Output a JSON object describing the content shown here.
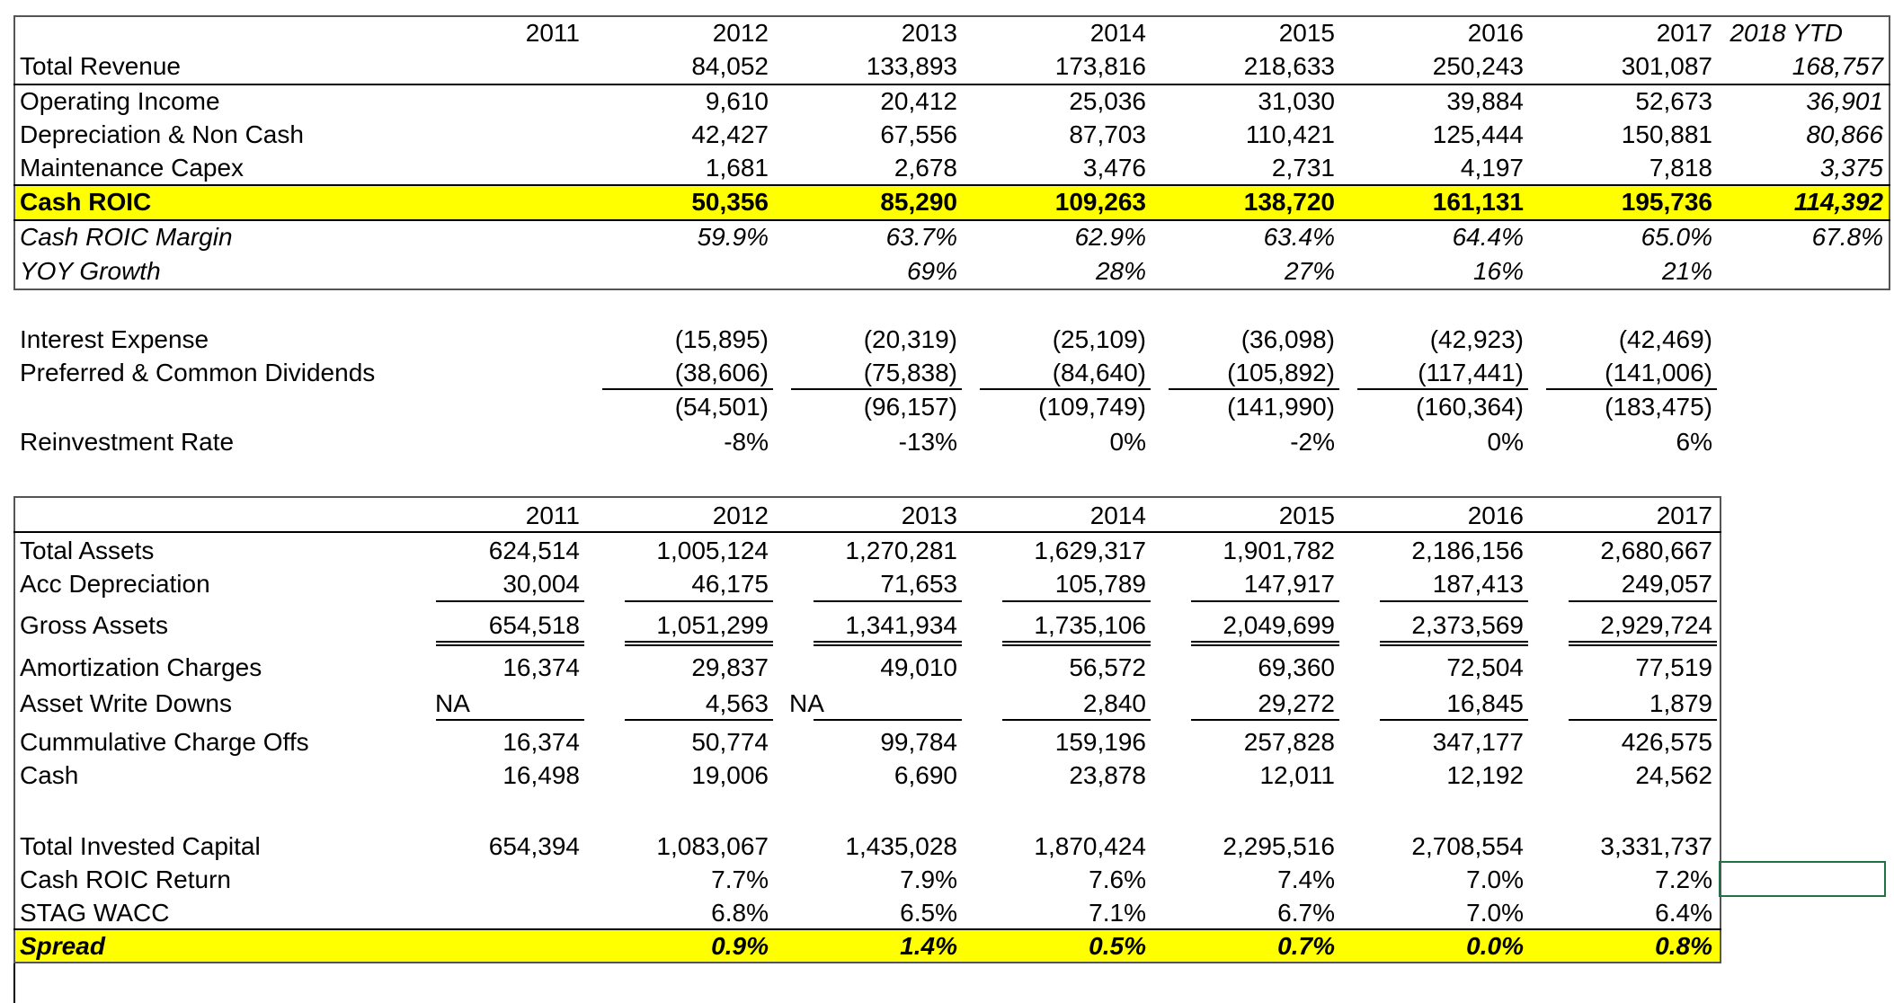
{
  "top": {
    "years": [
      "2011",
      "2012",
      "2013",
      "2014",
      "2015",
      "2016",
      "2017"
    ],
    "ytd_label": "2018 YTD",
    "rows": [
      {
        "label": "Total Revenue",
        "values": [
          "",
          "84,052",
          "133,893",
          "173,816",
          "218,633",
          "250,243",
          "301,087"
        ],
        "ytd": "168,757"
      },
      {
        "label": "Operating Income",
        "values": [
          "",
          "9,610",
          "20,412",
          "25,036",
          "31,030",
          "39,884",
          "52,673"
        ],
        "ytd": "36,901"
      },
      {
        "label": "Depreciation & Non Cash",
        "values": [
          "",
          "42,427",
          "67,556",
          "87,703",
          "110,421",
          "125,444",
          "150,881"
        ],
        "ytd": "80,866"
      },
      {
        "label": "Maintenance Capex",
        "values": [
          "",
          "1,681",
          "2,678",
          "3,476",
          "2,731",
          "4,197",
          "7,818"
        ],
        "ytd": "3,375"
      },
      {
        "label": "Cash ROIC",
        "values": [
          "",
          "50,356",
          "85,290",
          "109,263",
          "138,720",
          "161,131",
          "195,736"
        ],
        "ytd": "114,392"
      },
      {
        "label": "Cash ROIC Margin",
        "values": [
          "",
          "59.9%",
          "63.7%",
          "62.9%",
          "63.4%",
          "64.4%",
          "65.0%"
        ],
        "ytd": "67.8%"
      },
      {
        "label": "YOY Growth",
        "values": [
          "",
          "",
          "69%",
          "28%",
          "27%",
          "16%",
          "21%"
        ],
        "ytd": ""
      }
    ]
  },
  "middle": {
    "rows": [
      {
        "label": "Interest Expense",
        "values": [
          "",
          "(15,895)",
          "(20,319)",
          "(25,109)",
          "(36,098)",
          "(42,923)",
          "(42,469)"
        ]
      },
      {
        "label": "Preferred & Common Dividends",
        "values": [
          "",
          "(38,606)",
          "(75,838)",
          "(84,640)",
          "(105,892)",
          "(117,441)",
          "(141,006)"
        ]
      },
      {
        "label": "",
        "values": [
          "",
          "(54,501)",
          "(96,157)",
          "(109,749)",
          "(141,990)",
          "(160,364)",
          "(183,475)"
        ]
      },
      {
        "label": "Reinvestment Rate",
        "values": [
          "",
          "-8%",
          "-13%",
          "0%",
          "-2%",
          "0%",
          "6%"
        ]
      }
    ]
  },
  "bottom": {
    "years": [
      "2011",
      "2012",
      "2013",
      "2014",
      "2015",
      "2016",
      "2017"
    ],
    "rows": [
      {
        "label": "Total Assets",
        "values": [
          "624,514",
          "1,005,124",
          "1,270,281",
          "1,629,317",
          "1,901,782",
          "2,186,156",
          "2,680,667"
        ]
      },
      {
        "label": "Acc Depreciation",
        "values": [
          "30,004",
          "46,175",
          "71,653",
          "105,789",
          "147,917",
          "187,413",
          "249,057"
        ]
      },
      {
        "label": "Gross Assets",
        "values": [
          "654,518",
          "1,051,299",
          "1,341,934",
          "1,735,106",
          "2,049,699",
          "2,373,569",
          "2,929,724"
        ]
      },
      {
        "label": "Amortization Charges",
        "values": [
          "16,374",
          "29,837",
          "49,010",
          "56,572",
          "69,360",
          "72,504",
          "77,519"
        ]
      },
      {
        "label": "Asset Write Downs",
        "values": [
          "",
          "4,563",
          "",
          "2,840",
          "29,272",
          "16,845",
          "1,879"
        ],
        "na_left": [
          "NA",
          "NA"
        ]
      },
      {
        "label": "Cummulative Charge Offs",
        "values": [
          "16,374",
          "50,774",
          "99,784",
          "159,196",
          "257,828",
          "347,177",
          "426,575"
        ]
      },
      {
        "label": "Cash",
        "values": [
          "16,498",
          "19,006",
          "6,690",
          "23,878",
          "12,011",
          "12,192",
          "24,562"
        ]
      },
      {
        "label": "Total Invested Capital",
        "values": [
          "654,394",
          "1,083,067",
          "1,435,028",
          "1,870,424",
          "2,295,516",
          "2,708,554",
          "3,331,737"
        ]
      },
      {
        "label": "Cash ROIC Return",
        "values": [
          "",
          "7.7%",
          "7.9%",
          "7.6%",
          "7.4%",
          "7.0%",
          "7.2%"
        ]
      },
      {
        "label": "STAG WACC",
        "values": [
          "",
          "6.8%",
          "6.5%",
          "7.1%",
          "6.7%",
          "7.0%",
          "6.4%"
        ]
      },
      {
        "label": "Spread",
        "values": [
          "",
          "0.9%",
          "1.4%",
          "0.5%",
          "0.7%",
          "0.0%",
          "0.8%"
        ]
      }
    ]
  }
}
